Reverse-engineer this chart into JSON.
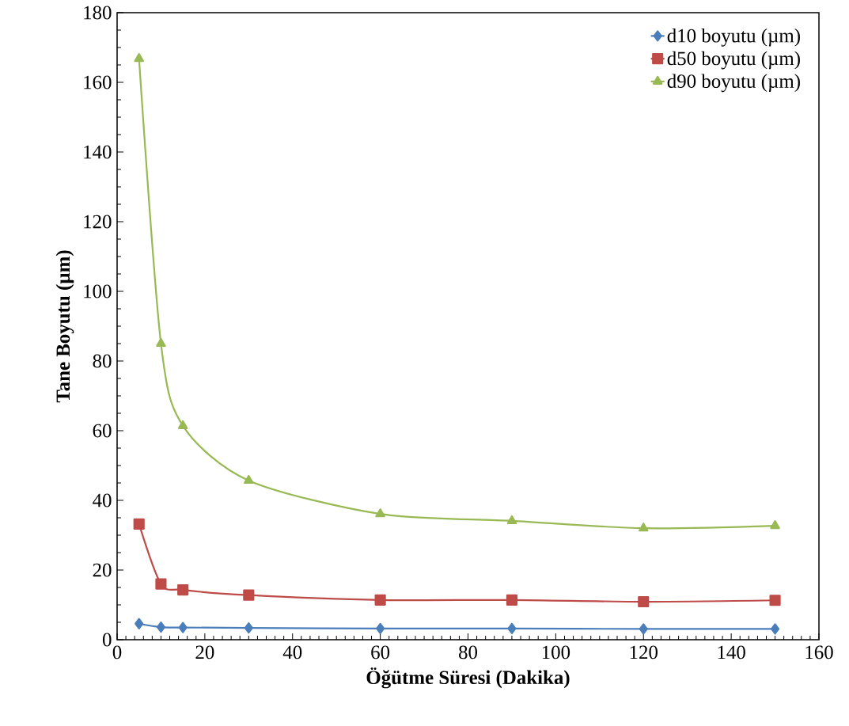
{
  "chart_data": {
    "type": "line",
    "xlabel": "Öğütme Süresi (Dakika)",
    "ylabel": "Tane Boyutu (µm)",
    "xlim": [
      0,
      160
    ],
    "xticks": [
      0,
      20,
      40,
      60,
      80,
      100,
      120,
      140,
      160
    ],
    "ylim": [
      0,
      180
    ],
    "yticks": [
      0,
      20,
      40,
      60,
      80,
      100,
      120,
      140,
      160,
      180
    ],
    "x": [
      5,
      10,
      15,
      30,
      60,
      90,
      120,
      150
    ],
    "legend": "top right",
    "grid": false,
    "series": [
      {
        "name": "d10 boyutu (µm)",
        "color": "#4a7ebb",
        "marker": "diamond",
        "values": [
          4.6,
          3.6,
          3.5,
          3.4,
          3.2,
          3.2,
          3.1,
          3.1
        ]
      },
      {
        "name": "d50 boyutu (µm)",
        "color": "#be4b48",
        "marker": "square",
        "values": [
          33.2,
          16.0,
          14.3,
          12.8,
          11.4,
          11.4,
          10.9,
          11.3
        ]
      },
      {
        "name": "d90 boyutu (µm)",
        "color": "#98b954",
        "marker": "triangle",
        "values": [
          166.8,
          85.0,
          61.4,
          45.7,
          36.1,
          34.1,
          32.0,
          32.7
        ]
      }
    ]
  }
}
